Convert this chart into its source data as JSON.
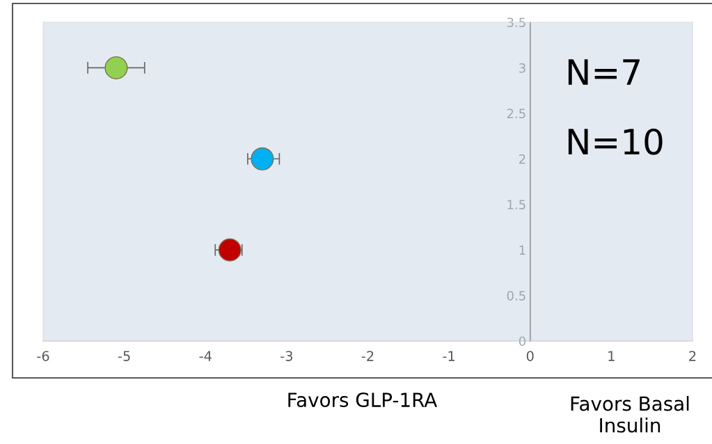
{
  "chart_data": {
    "type": "scatter",
    "series": [
      {
        "x": [
          -5.1,
          -3.3,
          -3.7
        ],
        "values": [
          3,
          2,
          1
        ],
        "colors": [
          "#92d050",
          "#00b0f0",
          "#c00000"
        ],
        "xerrors": [
          [
            -5.45,
            -4.75
          ],
          [
            -3.48,
            -3.09
          ],
          [
            -3.88,
            -3.55
          ]
        ]
      }
    ],
    "xlim": [
      -6,
      2
    ],
    "xticks": [
      -6,
      -5,
      -4,
      -3,
      -2,
      -1,
      0,
      1,
      2
    ],
    "ylim": [
      0,
      3.5
    ],
    "yticks": [
      0,
      0.5,
      1,
      1.5,
      2,
      2.5,
      3,
      3.5
    ],
    "marker": "circle",
    "grid": false,
    "legend": false,
    "ref_lines": [
      {
        "axis": "x",
        "value": 0,
        "color": "#a6a6a6"
      }
    ],
    "annotations": [
      "N=7",
      "N=10",
      "Favors GLP-1RA",
      "Favors Basal\nInsulin"
    ]
  }
}
